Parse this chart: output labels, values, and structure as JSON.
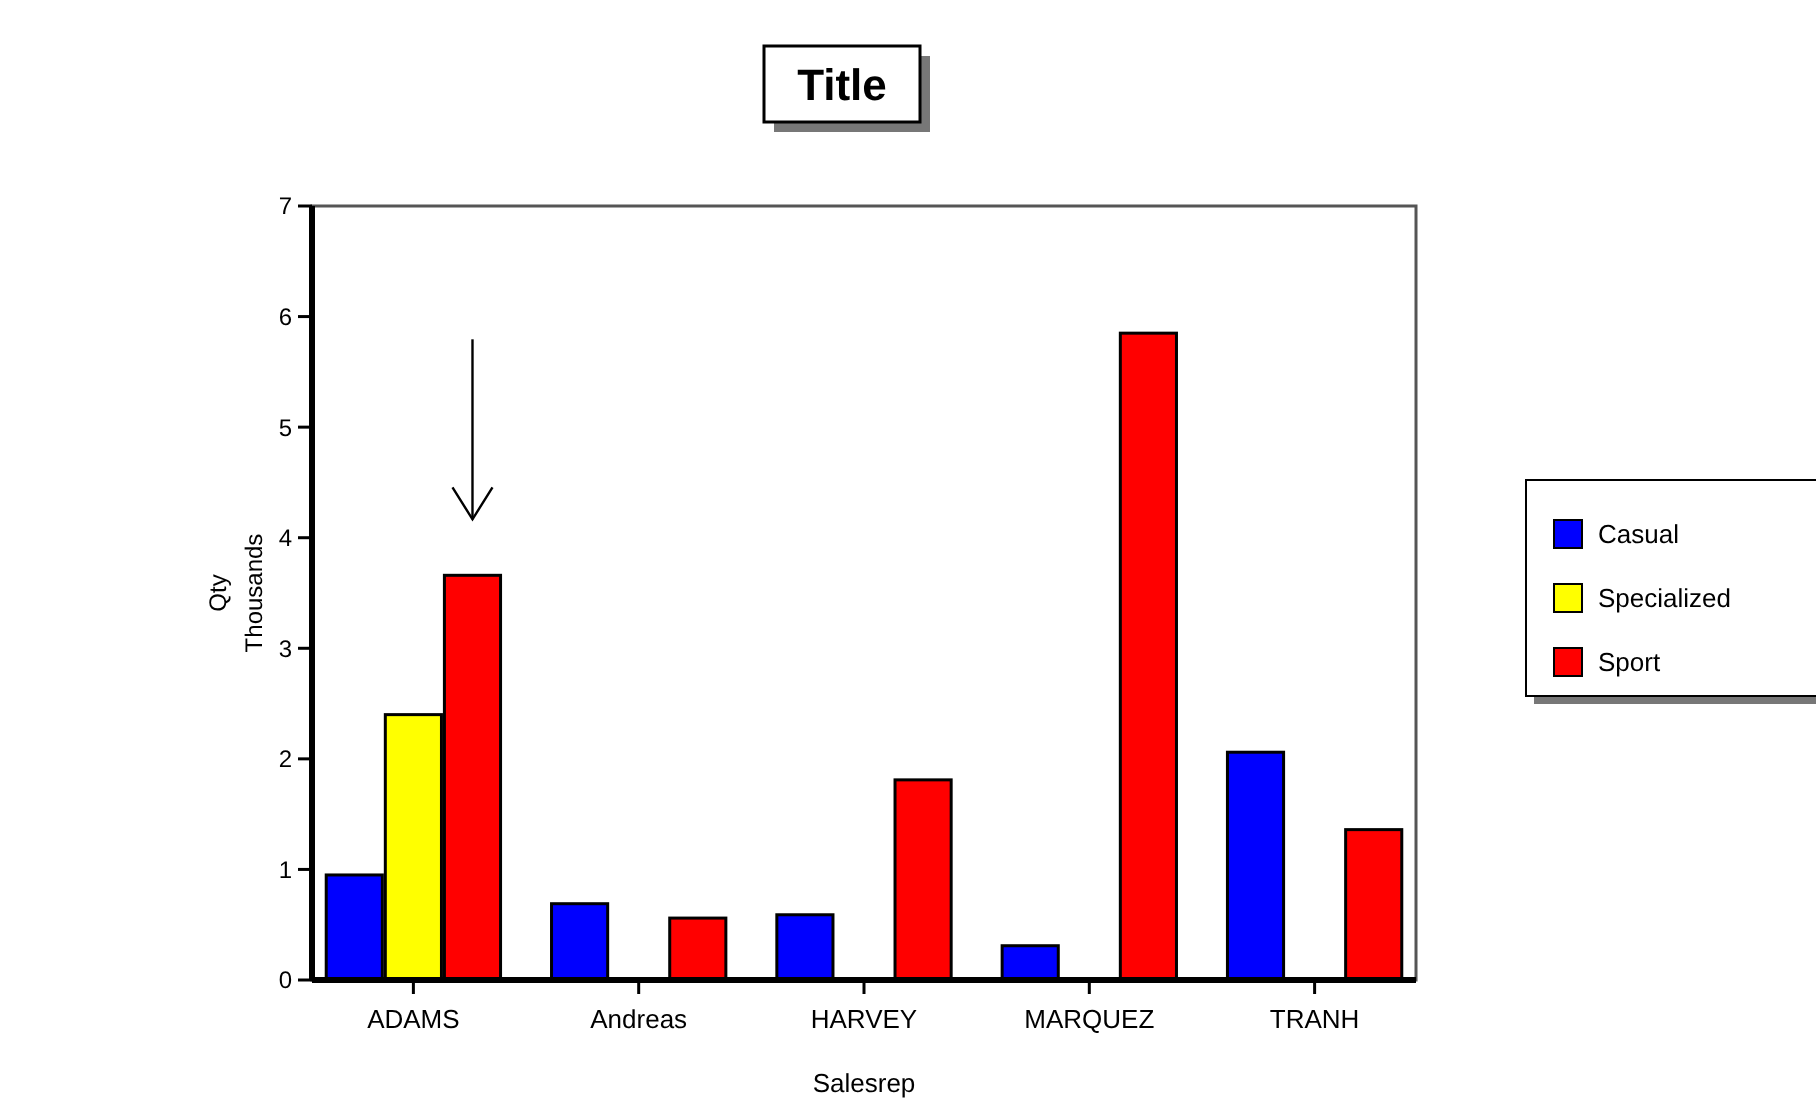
{
  "chart_data": {
    "type": "bar",
    "title": "Title",
    "xlabel": "Salesrep",
    "ylabel": "Qty\nThousands",
    "categories": [
      "ADAMS",
      "Andreas",
      "HARVEY",
      "MARQUEZ",
      "TRANH"
    ],
    "series": [
      {
        "name": "Casual",
        "color": "#0000ff",
        "values": [
          0.95,
          0.69,
          0.59,
          0.31,
          2.06
        ]
      },
      {
        "name": "Specialized",
        "color": "#ffff00",
        "values": [
          2.4,
          null,
          null,
          null,
          null
        ]
      },
      {
        "name": "Sport",
        "color": "#ff0000",
        "values": [
          3.66,
          0.56,
          1.81,
          5.85,
          1.36
        ]
      }
    ],
    "ylim": [
      0,
      7
    ],
    "yticks": [
      0,
      1,
      2,
      3,
      4,
      5,
      6,
      7
    ],
    "grid": false,
    "legend": "right"
  }
}
